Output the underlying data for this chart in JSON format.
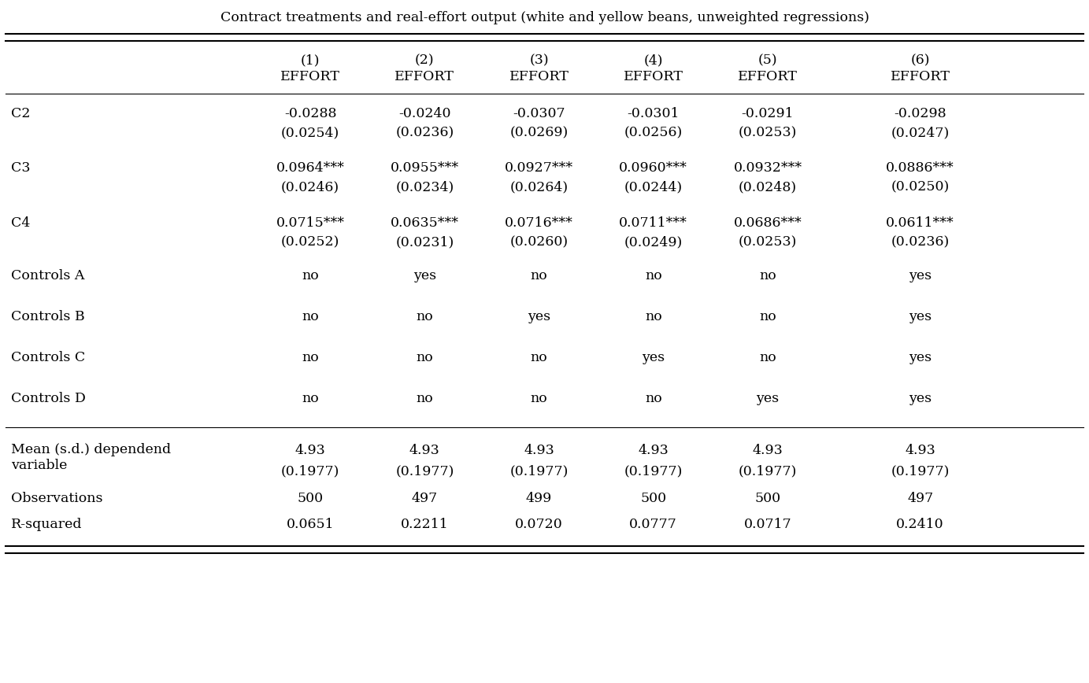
{
  "title": "Contract treatments and real-effort output (white and yellow beans, unweighted regressions)",
  "col_headers": [
    "(1)\nEFFORT",
    "(2)\nEFFORT",
    "(3)\nEFFORT",
    "(4)\nEFFORT",
    "(5)\nEFFORT",
    "(6)\nEFFORT"
  ],
  "rows": [
    {
      "label": "C2",
      "coef": [
        "-0.0288",
        "-0.0240",
        "-0.0307",
        "-0.0301",
        "-0.0291",
        "-0.0298"
      ],
      "se": [
        "(0.0254)",
        "(0.0236)",
        "(0.0269)",
        "(0.0256)",
        "(0.0253)",
        "(0.0247)"
      ],
      "stars": [
        "",
        "",
        "",
        "",
        "",
        ""
      ]
    },
    {
      "label": "C3",
      "coef": [
        "0.0964",
        "0.0955",
        "0.0927",
        "0.0960",
        "0.0932",
        "0.0886"
      ],
      "se": [
        "(0.0246)",
        "(0.0234)",
        "(0.0264)",
        "(0.0244)",
        "(0.0248)",
        "(0.0250)"
      ],
      "stars": [
        "***",
        "***",
        "***",
        "***",
        "***",
        "***"
      ]
    },
    {
      "label": "C4",
      "coef": [
        "0.0715",
        "0.0635",
        "0.0716",
        "0.0711",
        "0.0686",
        "0.0611"
      ],
      "se": [
        "(0.0252)",
        "(0.0231)",
        "(0.0260)",
        "(0.0249)",
        "(0.0253)",
        "(0.0236)"
      ],
      "stars": [
        "***",
        "***",
        "***",
        "***",
        "***",
        "***"
      ]
    },
    {
      "label": "Controls A",
      "values": [
        "no",
        "yes",
        "no",
        "no",
        "no",
        "yes"
      ]
    },
    {
      "label": "Controls B",
      "values": [
        "no",
        "no",
        "yes",
        "no",
        "no",
        "yes"
      ]
    },
    {
      "label": "Controls C",
      "values": [
        "no",
        "no",
        "no",
        "yes",
        "no",
        "yes"
      ]
    },
    {
      "label": "Controls D",
      "values": [
        "no",
        "no",
        "no",
        "no",
        "yes",
        "yes"
      ]
    }
  ],
  "footer_mean_label": "Mean (s.d.) dependend\nvariable",
  "footer_mean_val": "4.93",
  "footer_mean_se": "(0.1977)",
  "footer_obs_label": "Observations",
  "footer_obs": [
    "500",
    "497",
    "499",
    "500",
    "500",
    "497"
  ],
  "footer_rsq_label": "R-squared",
  "footer_rsq": [
    "0.0651",
    "0.2211",
    "0.0720",
    "0.0777",
    "0.0717",
    "0.2410"
  ],
  "bg_color": "#ffffff",
  "text_color": "#000000",
  "font_size": 12.5,
  "small_font_size": 9.5,
  "font_family": "DejaVu Serif"
}
